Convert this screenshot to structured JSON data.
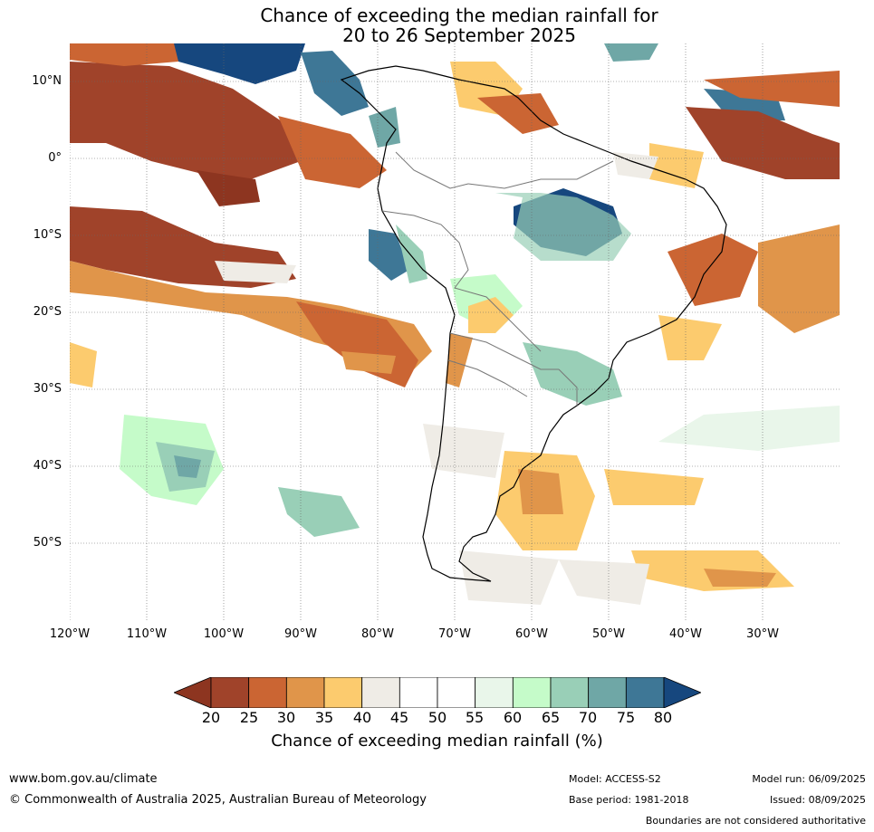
{
  "title_line1": "Chance of exceeding the median rainfall for",
  "title_line2": "20 to 26 September 2025",
  "lat_labels": [
    "10°N",
    "0°",
    "10°S",
    "20°S",
    "30°S",
    "40°S",
    "50°S"
  ],
  "lon_labels": [
    "120°W",
    "110°W",
    "100°W",
    "90°W",
    "80°W",
    "70°W",
    "60°W",
    "50°W",
    "40°W",
    "30°W"
  ],
  "colorbar": {
    "ticks": [
      "20",
      "25",
      "30",
      "35",
      "40",
      "45",
      "50",
      "55",
      "60",
      "65",
      "70",
      "75",
      "80"
    ],
    "colors": [
      "#a0432a",
      "#cb6533",
      "#e0954a",
      "#fccb6e",
      "#efece6",
      "#ffffff",
      "#ffffff",
      "#e9f6ea",
      "#c5fbc9",
      "#99cfb7",
      "#6fa7a6",
      "#3e7796"
    ],
    "below_color": "#8d3520",
    "above_color": "#16477e",
    "label": "Chance of exceeding median rainfall (%)"
  },
  "footer": {
    "website": "www.bom.gov.au/climate",
    "copyright": "© Commonwealth of Australia 2025, Australian Bureau of Meteorology",
    "model": "Model: ACCESS-S2",
    "base_period": "Base period: 1981-2018",
    "model_run": "Model run: 06/09/2025",
    "issued": "Issued: 08/09/2025",
    "note": "Boundaries are not considered authoritative"
  }
}
